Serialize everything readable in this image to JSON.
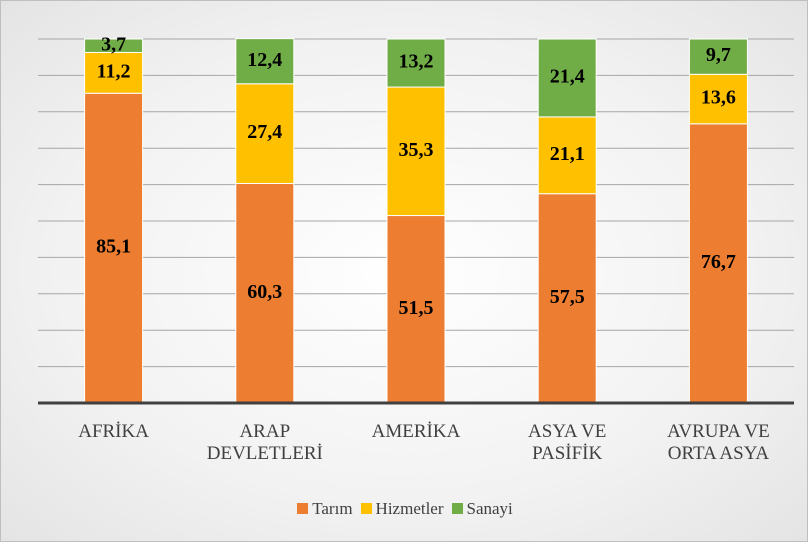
{
  "chart_data": {
    "type": "stacked_bar",
    "categories": [
      "AFRİKA",
      "ARAP DEVLETLERİ",
      "AMERİKA",
      "ASYA VE PASİFİK",
      "AVRUPA VE ORTA ASYA"
    ],
    "series": [
      {
        "name": "Tarım",
        "color": "#ED7D31",
        "values": [
          85.1,
          60.3,
          51.5,
          57.5,
          76.7
        ],
        "value_labels": [
          "85,1",
          "60,3",
          "51,5",
          "57,5",
          "76,7"
        ]
      },
      {
        "name": "Hizmetler",
        "color": "#FFC000",
        "values": [
          11.2,
          27.4,
          35.3,
          21.1,
          13.6
        ],
        "value_labels": [
          "11,2",
          "27,4",
          "35,3",
          "21,1",
          "13,6"
        ]
      },
      {
        "name": "Sanayi",
        "color": "#70AD47",
        "values": [
          3.7,
          12.4,
          13.2,
          21.4,
          9.7
        ],
        "value_labels": [
          "3,7",
          "12,4",
          "13,2",
          "21,4",
          "9,7"
        ]
      }
    ],
    "ylim": [
      0,
      100
    ],
    "yticks": [
      0,
      10,
      20,
      30,
      40,
      50,
      60,
      70,
      80,
      90,
      100
    ],
    "grid": true,
    "legend": "bottom"
  }
}
